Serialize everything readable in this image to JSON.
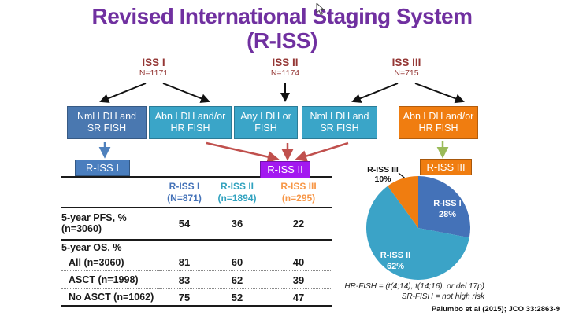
{
  "title": {
    "line1": "Revised International Staging System",
    "line2": "(R-ISS)"
  },
  "colors": {
    "title_purple": "#7030a0",
    "iss_maroon": "#943634",
    "box_blue": "#4a78b0",
    "box_teal": "#3aa5c8",
    "box_orange": "#f07d10",
    "chip_blue": "#4a7ebe",
    "chip_purple": "#a318f0",
    "chip_orange": "#f07d10",
    "arrow_black": "#111111",
    "arrow_blue": "#4f81bd",
    "arrow_red": "#c0504d",
    "arrow_green": "#9bbb59"
  },
  "iss_groups": [
    {
      "label": "ISS I",
      "n": "N=1171"
    },
    {
      "label": "ISS II",
      "n": "N=1174"
    },
    {
      "label": "ISS III",
      "n": "N=715"
    }
  ],
  "criteria_boxes": [
    {
      "label": "Nml LDH and SR FISH",
      "color": "#4a78b0"
    },
    {
      "label": "Abn LDH and/or HR FISH",
      "color": "#3aa5c8"
    },
    {
      "label": "Any LDH or FISH",
      "color": "#3aa5c8"
    },
    {
      "label": "Nml LDH and SR FISH",
      "color": "#3aa5c8"
    },
    {
      "label": "Abn LDH and/or HR FISH",
      "color": "#f07d10"
    }
  ],
  "riss_chips": [
    {
      "label": "R-ISS I",
      "color": "#4a7ebe"
    },
    {
      "label": "R-ISS II",
      "color": "#a318f0"
    },
    {
      "label": "R-ISS III",
      "color": "#f07d10"
    }
  ],
  "table": {
    "col_headers": [
      {
        "line1": "R-ISS I",
        "line2": "(N=871)",
        "color": "#4472b8"
      },
      {
        "line1": "R-ISS II",
        "line2": "(n=1894)",
        "color": "#31a2bf"
      },
      {
        "line1": "R-ISS III",
        "line2": "(n=295)",
        "color": "#f79646"
      }
    ],
    "rows": [
      {
        "label_lines": [
          "5-year PFS, %",
          "(n=3060)"
        ],
        "indent": false,
        "values": [
          "54",
          "36",
          "22"
        ]
      },
      {
        "label_lines": [
          "5-year OS, %"
        ],
        "indent": false,
        "values": [
          "",
          "",
          ""
        ]
      },
      {
        "label_lines": [
          "All (n=3060)"
        ],
        "indent": true,
        "values": [
          "81",
          "60",
          "40"
        ]
      },
      {
        "label_lines": [
          "ASCT (n=1998)"
        ],
        "indent": true,
        "values": [
          "83",
          "62",
          "39"
        ]
      },
      {
        "label_lines": [
          "No ASCT (n=1062)"
        ],
        "indent": true,
        "values": [
          "75",
          "52",
          "47"
        ]
      }
    ]
  },
  "chart_data": {
    "type": "pie",
    "title": "R-ISS distribution",
    "legend_position": "inside",
    "slices": [
      {
        "label": "R-ISS I",
        "value": 28,
        "pct_label": "28%",
        "color": "#4472b8",
        "label_inside": true
      },
      {
        "label": "R-ISS II",
        "value": 62,
        "pct_label": "62%",
        "color": "#3ba3c7",
        "label_inside": true
      },
      {
        "label": "R-ISS III",
        "value": 10,
        "pct_label": "10%",
        "color": "#f07d10",
        "label_inside": false
      }
    ]
  },
  "footnotes": {
    "line1": "HR-FISH = (t(4;14), t(14;16), or del 17p)",
    "line2": "SR-FISH = not high risk"
  },
  "citation": "Palumbo et al (2015); JCO 33:2863-9"
}
